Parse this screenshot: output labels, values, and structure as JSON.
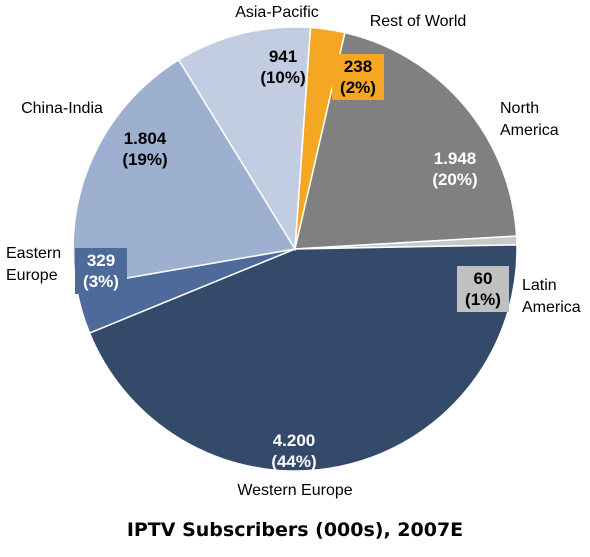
{
  "chart_data": {
    "type": "pie",
    "title": "IPTV Subscribers (000s), 2007E",
    "slices": [
      {
        "label": "Rest of World",
        "value": 238,
        "value_label": "238",
        "percent_label": "(2%)",
        "color": "#F5A623",
        "label_lines": [
          "Rest of World"
        ]
      },
      {
        "label": "North America",
        "value": 1948,
        "value_label": "1.948",
        "percent_label": "(20%)",
        "color": "#808080",
        "label_lines": [
          "North",
          "America"
        ]
      },
      {
        "label": "Latin America",
        "value": 60,
        "value_label": "60",
        "percent_label": "(1%)",
        "color": "#C8C8C8",
        "label_lines": [
          "Latin",
          "America"
        ]
      },
      {
        "label": "Western Europe",
        "value": 4200,
        "value_label": "4.200",
        "percent_label": "(44%)",
        "color": "#344A6B",
        "label_lines": [
          "Western Europe"
        ]
      },
      {
        "label": "Eastern Europe",
        "value": 329,
        "value_label": "329",
        "percent_label": "(3%)",
        "color": "#4E6A9A",
        "label_lines": [
          "Eastern",
          "Europe"
        ]
      },
      {
        "label": "China-India",
        "value": 1804,
        "value_label": "1.804",
        "percent_label": "(19%)",
        "color": "#9DB0D0",
        "label_lines": [
          "China-India"
        ]
      },
      {
        "label": "Asia-Pacific",
        "value": 941,
        "value_label": "941",
        "percent_label": "(10%)",
        "color": "#C2CDE2",
        "label_lines": [
          "Asia-Pacific"
        ]
      }
    ]
  }
}
